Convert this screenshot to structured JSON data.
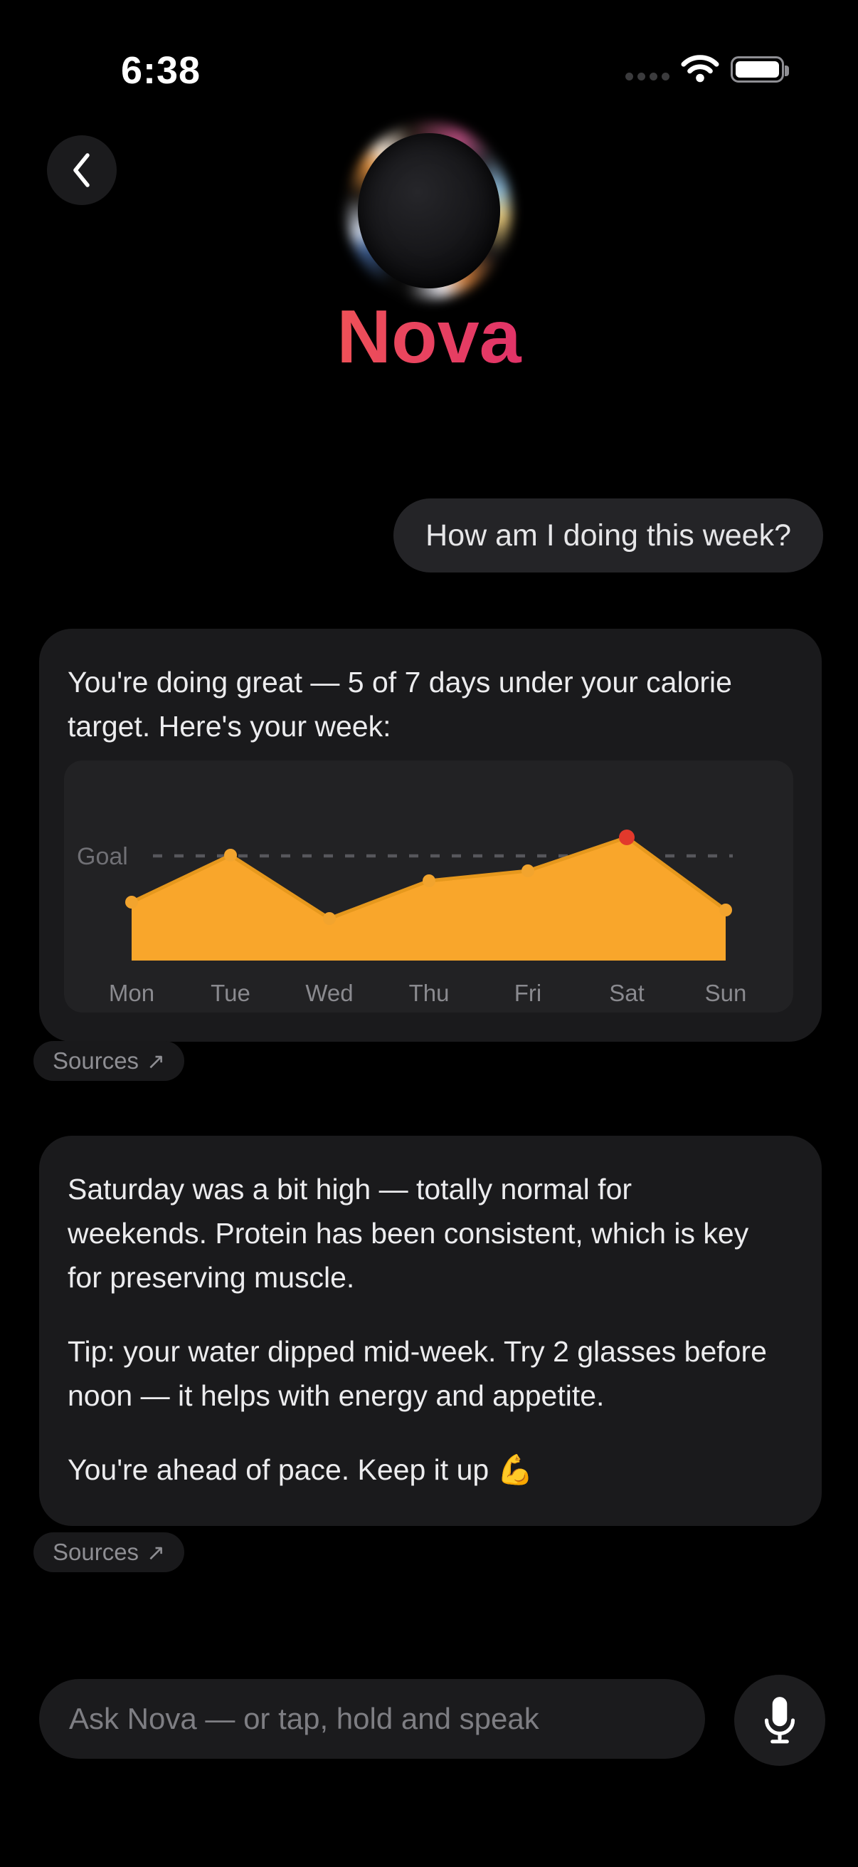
{
  "status_bar": {
    "time": "6:38",
    "battery_level": "full"
  },
  "header": {
    "title": "Nova"
  },
  "chat": {
    "user_message": "How am I doing this week?",
    "assistant_intro": "You're doing great — 5 of 7 days under your calorie target. Here's your week:",
    "assistant_followup_paragraphs": [
      "Saturday was a bit high — totally normal for weekends. Protein has been consistent, which is key for preserving muscle.",
      "Tip: your water dipped mid-week. Try 2 glasses before noon — it helps with energy and appetite.",
      "You're ahead of pace. Keep it up 💪"
    ],
    "sources_label": "Sources",
    "sources_icon": "↗"
  },
  "chart_data": {
    "type": "area",
    "categories": [
      "Mon",
      "Tue",
      "Wed",
      "Thu",
      "Fri",
      "Sat",
      "Sun"
    ],
    "values": [
      0.56,
      1.01,
      0.4,
      0.76,
      0.86,
      1.18,
      0.48
    ],
    "values_unit": "relative_to_goal",
    "goal_value": 1.0,
    "goal_label": "Goal",
    "highlight": {
      "index": 5,
      "color": "#e2392c"
    },
    "y_axis": "hidden",
    "legend": "none",
    "grid": "goal-dashed-line-only",
    "colors": {
      "area": "#f9a62b",
      "line": "#e6981d",
      "point": "#f2a42e",
      "goal_line": "#57575c",
      "goal_text": "#707075",
      "tick_label": "#8a8a8f",
      "panel_bg": "#222224"
    }
  },
  "composer": {
    "placeholder": "Ask Nova — or tap, hold and speak",
    "value": ""
  },
  "colors": {
    "background": "#000000",
    "card": "#1a1a1c",
    "user_bubble": "#242427",
    "title_gradient": [
      "#f7a03c",
      "#e03169",
      "#c42563"
    ],
    "text_primary": "#ececee",
    "text_secondary": "#8e8e93"
  }
}
